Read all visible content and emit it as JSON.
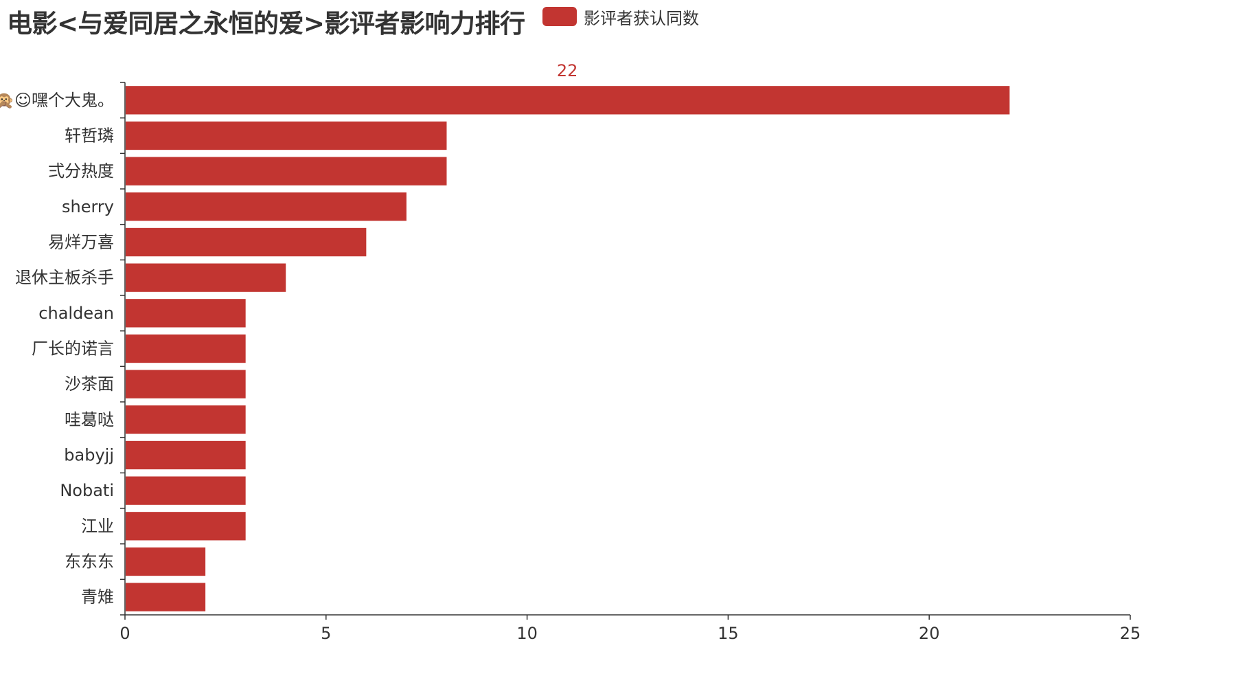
{
  "page": {
    "title": "电影<与爱同居之永恒的爱>影评者影响力排行"
  },
  "legend": {
    "label": "影评者获认同数",
    "color": "#c23531"
  },
  "chart_data": {
    "type": "bar",
    "orientation": "horizontal",
    "title": "电影<与爱同居之永恒的爱>影评者影响力排行",
    "xlabel": "",
    "ylabel": "",
    "xlim": [
      0,
      25
    ],
    "x_ticks": [
      0,
      5,
      10,
      15,
      20,
      25
    ],
    "grid": false,
    "legend_position": "top",
    "bar_color": "#c23531",
    "label_color": "#c23531",
    "labeled_values": [
      22
    ],
    "categories": [
      "🙊☺嘿个大鬼。",
      "轩哲璘",
      "弍分热度",
      "sherry",
      "易烊万喜",
      "退休主板杀手",
      "chaldean",
      "厂长的诺言",
      "沙茶面",
      "哇葛哒",
      "babyjj",
      "Nobati",
      "江业",
      "东东东",
      "青雉"
    ],
    "series": [
      {
        "name": "影评者获认同数",
        "values": [
          22,
          8,
          8,
          7,
          6,
          4,
          3,
          3,
          3,
          3,
          3,
          3,
          3,
          2,
          2
        ]
      }
    ]
  }
}
